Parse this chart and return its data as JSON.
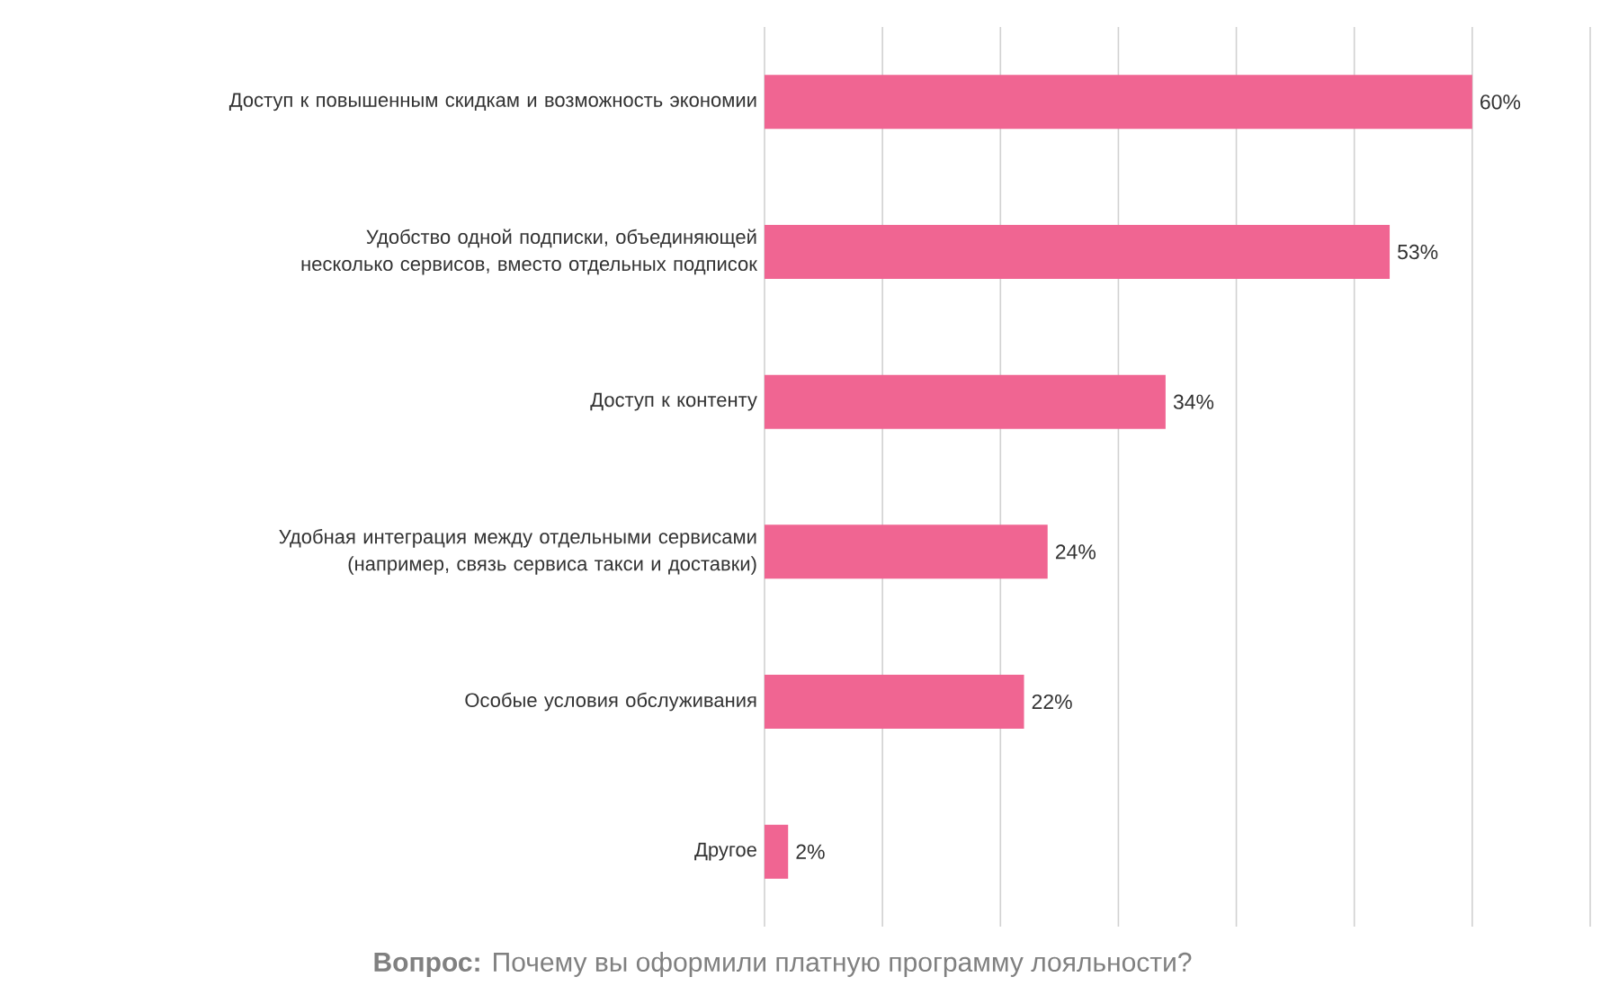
{
  "chart_data": {
    "type": "bar",
    "orientation": "horizontal",
    "categories": [
      "Доступ к повышенным скидкам и возможность экономии",
      "Удобство одной подписки, объединяющей несколько сервисов, вместо отдельных подписок",
      "Доступ к контенту",
      "Удобная интеграция между отдельными сервисами (например, связь сервиса такси и доставки)",
      "Особые условия обслуживания",
      "Другое"
    ],
    "values": [
      60,
      53,
      34,
      24,
      22,
      2
    ],
    "value_labels": [
      "60%",
      "53%",
      "34%",
      "24%",
      "22%",
      "2%"
    ],
    "color": "#f06592",
    "xlim": [
      0,
      70
    ],
    "xticks": [
      {
        "value": 0,
        "label": null
      },
      {
        "value": 10,
        "label": null
      },
      {
        "value": 20,
        "label": null
      },
      {
        "value": 30,
        "label": null
      },
      {
        "value": 40,
        "label": null
      },
      {
        "value": 50,
        "label": null
      },
      {
        "value": 60,
        "label": null
      },
      {
        "value": 70,
        "label": null
      }
    ],
    "tick_labels": "y",
    "grid": "x",
    "annotations": [
      "**Вопрос:** Почему вы оформили платную программу лояльности?"
    ]
  }
}
